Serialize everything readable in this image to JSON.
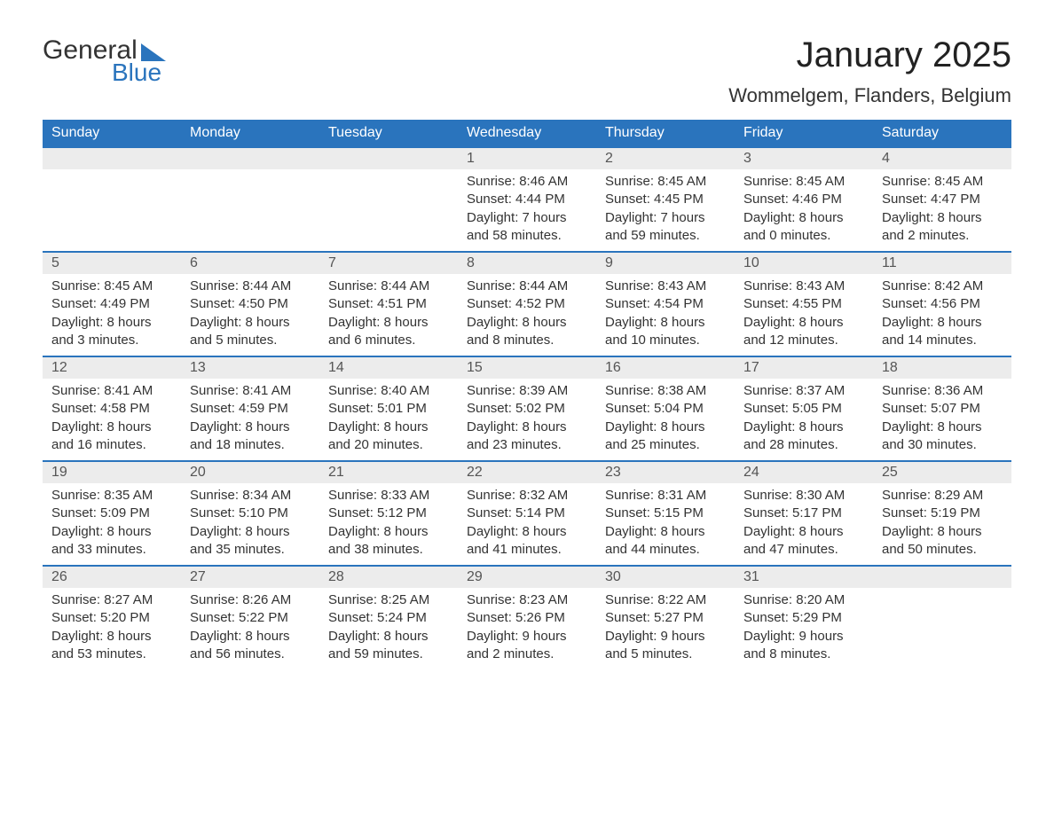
{
  "brand": {
    "word1": "General",
    "word2": "Blue",
    "accent_color": "#2a74bd"
  },
  "title": "January 2025",
  "location": "Wommelgem, Flanders, Belgium",
  "style": {
    "header_bg": "#2a74bd",
    "header_fg": "#ffffff",
    "daynum_bg": "#ececec",
    "daynum_fg": "#555555",
    "body_fg": "#333333",
    "page_bg": "#ffffff",
    "row_border": "#2a74bd",
    "title_fontsize": 40,
    "location_fontsize": 22,
    "header_fontsize": 16,
    "cell_fontsize": 15
  },
  "day_headers": [
    "Sunday",
    "Monday",
    "Tuesday",
    "Wednesday",
    "Thursday",
    "Friday",
    "Saturday"
  ],
  "weeks": [
    [
      {
        "n": "",
        "empty": true
      },
      {
        "n": "",
        "empty": true
      },
      {
        "n": "",
        "empty": true
      },
      {
        "n": "1",
        "sunrise": "8:46 AM",
        "sunset": "4:44 PM",
        "daylight": "7 hours and 58 minutes."
      },
      {
        "n": "2",
        "sunrise": "8:45 AM",
        "sunset": "4:45 PM",
        "daylight": "7 hours and 59 minutes."
      },
      {
        "n": "3",
        "sunrise": "8:45 AM",
        "sunset": "4:46 PM",
        "daylight": "8 hours and 0 minutes."
      },
      {
        "n": "4",
        "sunrise": "8:45 AM",
        "sunset": "4:47 PM",
        "daylight": "8 hours and 2 minutes."
      }
    ],
    [
      {
        "n": "5",
        "sunrise": "8:45 AM",
        "sunset": "4:49 PM",
        "daylight": "8 hours and 3 minutes."
      },
      {
        "n": "6",
        "sunrise": "8:44 AM",
        "sunset": "4:50 PM",
        "daylight": "8 hours and 5 minutes."
      },
      {
        "n": "7",
        "sunrise": "8:44 AM",
        "sunset": "4:51 PM",
        "daylight": "8 hours and 6 minutes."
      },
      {
        "n": "8",
        "sunrise": "8:44 AM",
        "sunset": "4:52 PM",
        "daylight": "8 hours and 8 minutes."
      },
      {
        "n": "9",
        "sunrise": "8:43 AM",
        "sunset": "4:54 PM",
        "daylight": "8 hours and 10 minutes."
      },
      {
        "n": "10",
        "sunrise": "8:43 AM",
        "sunset": "4:55 PM",
        "daylight": "8 hours and 12 minutes."
      },
      {
        "n": "11",
        "sunrise": "8:42 AM",
        "sunset": "4:56 PM",
        "daylight": "8 hours and 14 minutes."
      }
    ],
    [
      {
        "n": "12",
        "sunrise": "8:41 AM",
        "sunset": "4:58 PM",
        "daylight": "8 hours and 16 minutes."
      },
      {
        "n": "13",
        "sunrise": "8:41 AM",
        "sunset": "4:59 PM",
        "daylight": "8 hours and 18 minutes."
      },
      {
        "n": "14",
        "sunrise": "8:40 AM",
        "sunset": "5:01 PM",
        "daylight": "8 hours and 20 minutes."
      },
      {
        "n": "15",
        "sunrise": "8:39 AM",
        "sunset": "5:02 PM",
        "daylight": "8 hours and 23 minutes."
      },
      {
        "n": "16",
        "sunrise": "8:38 AM",
        "sunset": "5:04 PM",
        "daylight": "8 hours and 25 minutes."
      },
      {
        "n": "17",
        "sunrise": "8:37 AM",
        "sunset": "5:05 PM",
        "daylight": "8 hours and 28 minutes."
      },
      {
        "n": "18",
        "sunrise": "8:36 AM",
        "sunset": "5:07 PM",
        "daylight": "8 hours and 30 minutes."
      }
    ],
    [
      {
        "n": "19",
        "sunrise": "8:35 AM",
        "sunset": "5:09 PM",
        "daylight": "8 hours and 33 minutes."
      },
      {
        "n": "20",
        "sunrise": "8:34 AM",
        "sunset": "5:10 PM",
        "daylight": "8 hours and 35 minutes."
      },
      {
        "n": "21",
        "sunrise": "8:33 AM",
        "sunset": "5:12 PM",
        "daylight": "8 hours and 38 minutes."
      },
      {
        "n": "22",
        "sunrise": "8:32 AM",
        "sunset": "5:14 PM",
        "daylight": "8 hours and 41 minutes."
      },
      {
        "n": "23",
        "sunrise": "8:31 AM",
        "sunset": "5:15 PM",
        "daylight": "8 hours and 44 minutes."
      },
      {
        "n": "24",
        "sunrise": "8:30 AM",
        "sunset": "5:17 PM",
        "daylight": "8 hours and 47 minutes."
      },
      {
        "n": "25",
        "sunrise": "8:29 AM",
        "sunset": "5:19 PM",
        "daylight": "8 hours and 50 minutes."
      }
    ],
    [
      {
        "n": "26",
        "sunrise": "8:27 AM",
        "sunset": "5:20 PM",
        "daylight": "8 hours and 53 minutes."
      },
      {
        "n": "27",
        "sunrise": "8:26 AM",
        "sunset": "5:22 PM",
        "daylight": "8 hours and 56 minutes."
      },
      {
        "n": "28",
        "sunrise": "8:25 AM",
        "sunset": "5:24 PM",
        "daylight": "8 hours and 59 minutes."
      },
      {
        "n": "29",
        "sunrise": "8:23 AM",
        "sunset": "5:26 PM",
        "daylight": "9 hours and 2 minutes."
      },
      {
        "n": "30",
        "sunrise": "8:22 AM",
        "sunset": "5:27 PM",
        "daylight": "9 hours and 5 minutes."
      },
      {
        "n": "31",
        "sunrise": "8:20 AM",
        "sunset": "5:29 PM",
        "daylight": "9 hours and 8 minutes."
      },
      {
        "n": "",
        "empty": true
      }
    ]
  ],
  "labels": {
    "sunrise": "Sunrise: ",
    "sunset": "Sunset: ",
    "daylight": "Daylight: "
  }
}
